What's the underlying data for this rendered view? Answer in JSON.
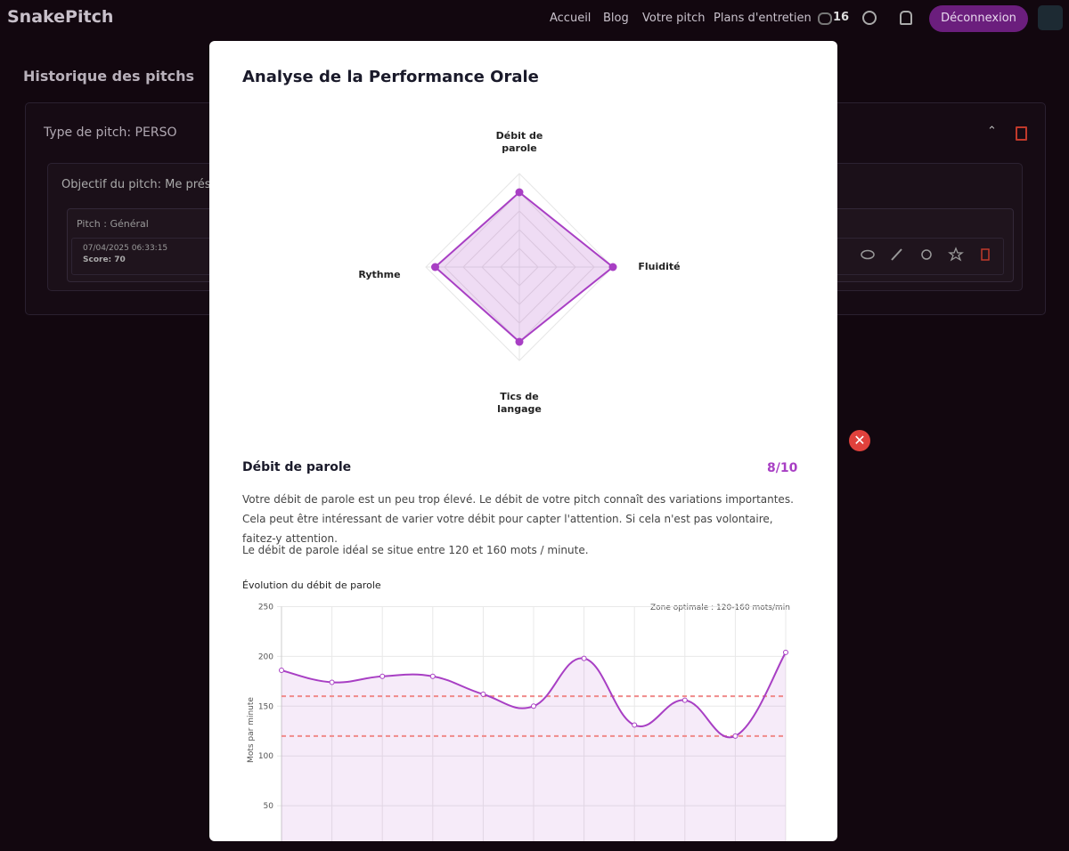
{
  "nav": {
    "brand": "SnakePitch",
    "links": [
      "Accueil",
      "Blog",
      "Votre pitch",
      "Plans d'entretien"
    ],
    "count": "16",
    "logout": "Déconnexion"
  },
  "background": {
    "page_title": "Historique des pitchs",
    "pitch_type": "Type de pitch: PERSO",
    "objective": "Objectif du pitch: Me prés",
    "pitch_name": "Pitch : Général",
    "date": "07/04/2025 06:33:15",
    "score": "Score: 70"
  },
  "modal": {
    "title": "Analyse de la Performance Orale",
    "radar": {
      "type": "radar",
      "axes": [
        "Débit de parole",
        "Fluidité",
        "Tics de langage",
        "Rythme"
      ],
      "values": [
        8,
        10,
        8,
        9
      ],
      "rlim": [
        0,
        10
      ],
      "color": "#a83fc4"
    },
    "section": {
      "title": "Débit de parole",
      "score": "8/10",
      "paragraphs": [
        "Votre débit de parole est un peu trop élevé. Le débit de votre pitch connaît des variations importantes. Cela peut être intéressant de varier votre débit pour capter l'attention. Si cela n'est pas volontaire, faitez-y attention.",
        "Le débit de parole idéal se situe entre 120 et 160 mots / minute."
      ]
    },
    "line_chart": {
      "type": "line",
      "title": "Évolution du débit de parole",
      "y_label": "Mots par minute",
      "annotation": "Zone optimale : 120-160 mots/min",
      "values": [
        186,
        174,
        180,
        180,
        162,
        150,
        198,
        131,
        156,
        120,
        204
      ],
      "color": "#a83fc4",
      "reference_lines": [
        120,
        160
      ],
      "reference_color": "#f08a8a",
      "ylim": [
        0,
        250
      ],
      "yticks": [
        50,
        100,
        150,
        200,
        250
      ],
      "grid": true
    }
  }
}
